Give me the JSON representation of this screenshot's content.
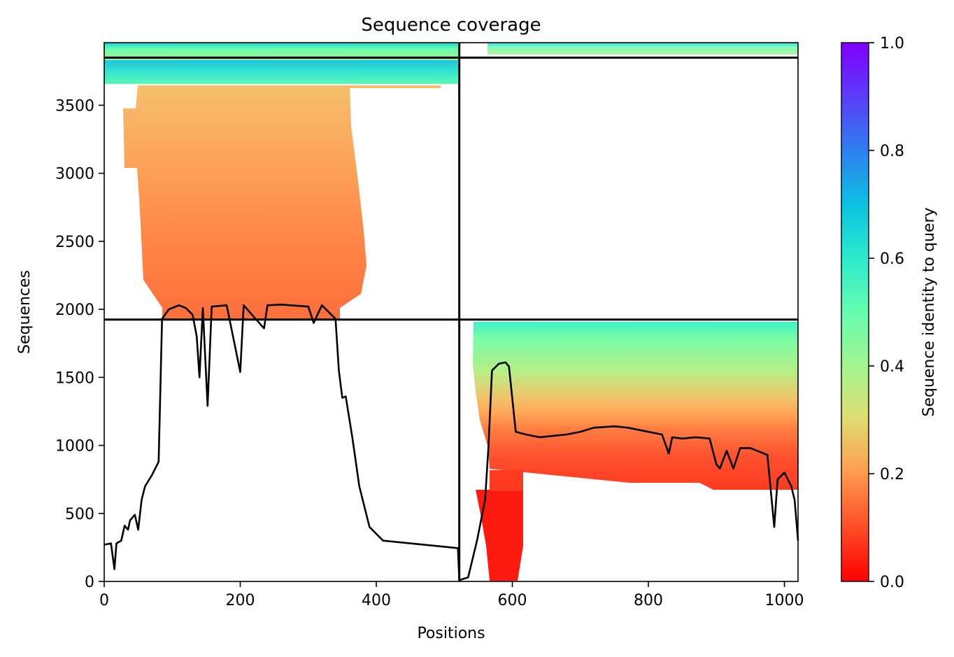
{
  "chart_data": {
    "type": "heatmap",
    "title": "Sequence coverage",
    "xlabel": "Positions",
    "ylabel": "Sequences",
    "xlim": [
      0,
      1020
    ],
    "ylim": [
      0,
      3960
    ],
    "x_ticks": [
      "0",
      "200",
      "400",
      "600",
      "800",
      "1000"
    ],
    "y_ticks": [
      "0",
      "500",
      "1000",
      "1500",
      "2000",
      "2500",
      "3000",
      "3500"
    ],
    "colorbar": {
      "label": "Sequence identity to query",
      "range": [
        0,
        1
      ],
      "ticks": [
        "0.0",
        "0.2",
        "0.4",
        "0.6",
        "0.8",
        "1.0"
      ],
      "colormap": "rainbow_r"
    },
    "segment_boundaries": {
      "position": 522,
      "sequences": [
        1925,
        3850
      ]
    },
    "coverage_line": [
      [
        0,
        270
      ],
      [
        10,
        280
      ],
      [
        15,
        90
      ],
      [
        18,
        280
      ],
      [
        25,
        300
      ],
      [
        30,
        410
      ],
      [
        35,
        380
      ],
      [
        38,
        450
      ],
      [
        45,
        490
      ],
      [
        50,
        380
      ],
      [
        55,
        600
      ],
      [
        60,
        700
      ],
      [
        70,
        780
      ],
      [
        80,
        880
      ],
      [
        85,
        1930
      ],
      [
        95,
        2000
      ],
      [
        110,
        2030
      ],
      [
        120,
        2010
      ],
      [
        130,
        1960
      ],
      [
        136,
        1800
      ],
      [
        140,
        1500
      ],
      [
        145,
        2010
      ],
      [
        152,
        1290
      ],
      [
        158,
        2020
      ],
      [
        180,
        2030
      ],
      [
        200,
        1540
      ],
      [
        205,
        2030
      ],
      [
        235,
        1860
      ],
      [
        240,
        2030
      ],
      [
        260,
        2035
      ],
      [
        300,
        2020
      ],
      [
        308,
        1900
      ],
      [
        320,
        2030
      ],
      [
        340,
        1930
      ],
      [
        345,
        1550
      ],
      [
        350,
        1350
      ],
      [
        355,
        1360
      ],
      [
        365,
        1050
      ],
      [
        375,
        700
      ],
      [
        390,
        400
      ],
      [
        410,
        300
      ],
      [
        450,
        280
      ],
      [
        500,
        255
      ],
      [
        520,
        245
      ],
      [
        522,
        10
      ],
      [
        535,
        30
      ],
      [
        548,
        300
      ],
      [
        560,
        600
      ],
      [
        565,
        1000
      ],
      [
        570,
        1550
      ],
      [
        580,
        1600
      ],
      [
        590,
        1610
      ],
      [
        595,
        1580
      ],
      [
        605,
        1100
      ],
      [
        620,
        1080
      ],
      [
        640,
        1060
      ],
      [
        660,
        1070
      ],
      [
        680,
        1080
      ],
      [
        700,
        1100
      ],
      [
        720,
        1130
      ],
      [
        750,
        1140
      ],
      [
        770,
        1130
      ],
      [
        790,
        1110
      ],
      [
        820,
        1080
      ],
      [
        830,
        940
      ],
      [
        835,
        1060
      ],
      [
        850,
        1050
      ],
      [
        870,
        1060
      ],
      [
        890,
        1050
      ],
      [
        900,
        860
      ],
      [
        905,
        830
      ],
      [
        915,
        960
      ],
      [
        925,
        830
      ],
      [
        935,
        980
      ],
      [
        950,
        980
      ],
      [
        975,
        930
      ],
      [
        985,
        400
      ],
      [
        990,
        750
      ],
      [
        1000,
        800
      ],
      [
        1010,
        700
      ],
      [
        1015,
        600
      ],
      [
        1020,
        300
      ]
    ]
  }
}
